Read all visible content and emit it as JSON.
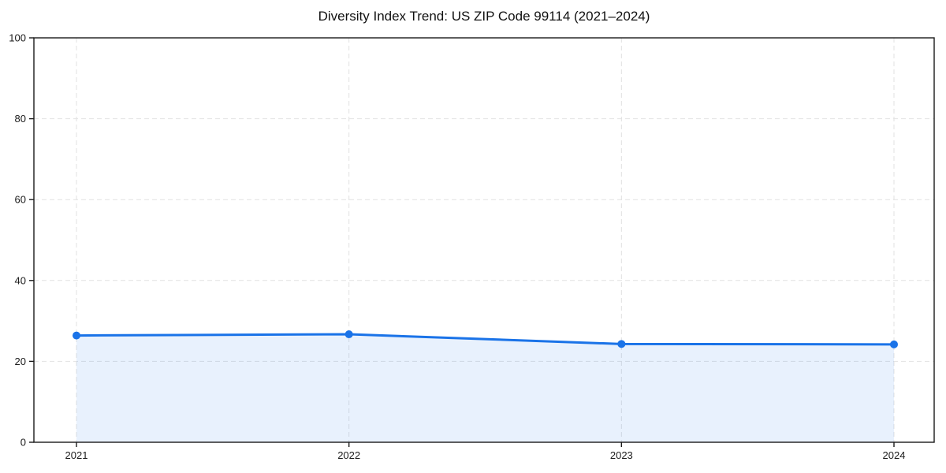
{
  "title": "Diversity Index Trend: US ZIP Code 99114 (2021–2024)",
  "chart_data": {
    "type": "area",
    "title": "Diversity Index Trend: US ZIP Code 99114 (2021–2024)",
    "x": [
      "2021",
      "2022",
      "2023",
      "2024"
    ],
    "series": [
      {
        "name": "Diversity Index",
        "values": [
          26.4,
          26.7,
          24.3,
          24.2
        ]
      }
    ],
    "xlabel": "",
    "ylabel": "",
    "ylim": [
      0,
      100
    ],
    "yticks": [
      0,
      20,
      40,
      60,
      80,
      100
    ],
    "grid": "dashed, horizontal and vertical",
    "legend": "none",
    "line_color": "#1a73e8",
    "marker_color": "#1a73e8",
    "fill_color": "rgba(26,115,232,0.10)",
    "grid_color": "#e2e2e2",
    "spine_color": "#1a1a1a",
    "tick_label_color": "#1a1a1a"
  }
}
